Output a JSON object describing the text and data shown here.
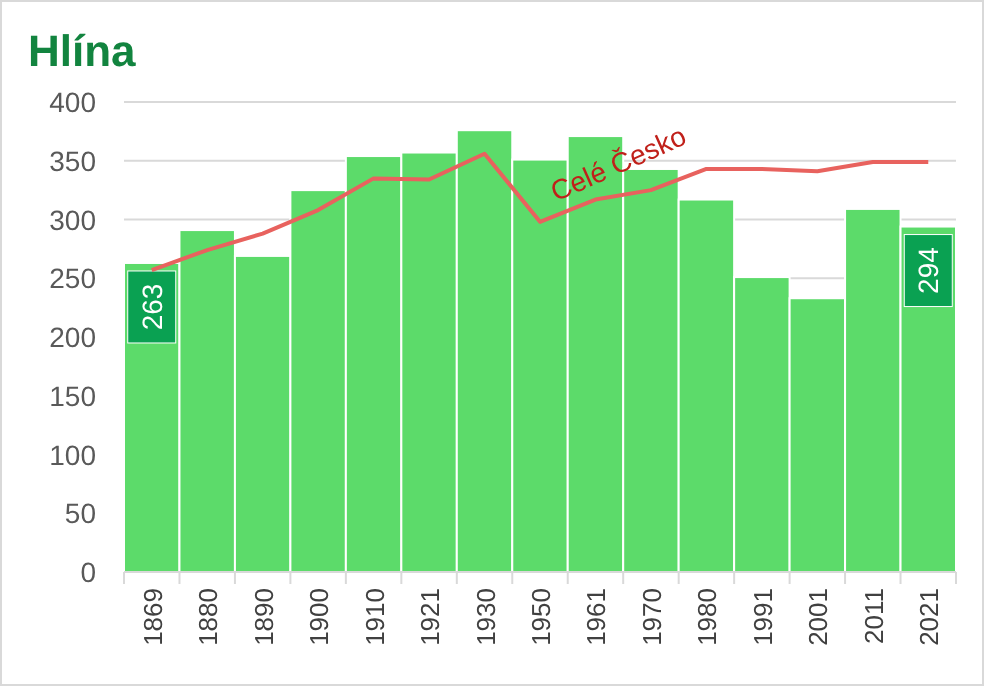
{
  "chart_data": {
    "type": "bar",
    "title": "Hlína",
    "categories": [
      "1869",
      "1880",
      "1890",
      "1900",
      "1910",
      "1921",
      "1930",
      "1950",
      "1961",
      "1970",
      "1980",
      "1991",
      "2001",
      "2011",
      "2021"
    ],
    "series": [
      {
        "color": "#5cdb6a",
        "values": [
          263,
          291,
          269,
          325,
          354,
          357,
          376,
          351,
          371,
          343,
          317,
          251,
          233,
          309,
          294
        ],
        "value_labels": [
          "263",
          null,
          null,
          null,
          null,
          null,
          null,
          null,
          null,
          null,
          null,
          null,
          null,
          null,
          "294"
        ]
      },
      {
        "type": "line",
        "name": "Celé Česko",
        "color": "#e8625e",
        "values": [
          257,
          274,
          288,
          308,
          335,
          334,
          356,
          298,
          317,
          325,
          343,
          343,
          341,
          349,
          349
        ]
      }
    ],
    "ylim": [
      0,
      400
    ],
    "yticks": [
      0,
      50,
      100,
      150,
      200,
      250,
      300,
      350,
      400
    ],
    "grid": "y"
  }
}
